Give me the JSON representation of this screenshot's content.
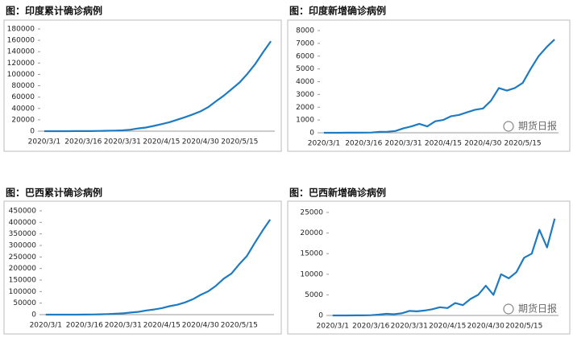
{
  "chart_data": [
    {
      "type": "line",
      "title": "图：印度累计确诊病例",
      "color": "#1f7bc1",
      "categories": [
        "2020/3/1",
        null,
        null,
        null,
        null,
        "2020/3/16",
        null,
        null,
        null,
        null,
        "2020/3/31",
        null,
        null,
        null,
        null,
        "2020/4/15",
        null,
        null,
        null,
        null,
        "2020/4/30",
        null,
        null,
        null,
        null,
        "2020/5/15",
        null,
        null,
        null,
        null
      ],
      "values": [
        3,
        28,
        34,
        50,
        82,
        114,
        195,
        396,
        657,
        987,
        1397,
        2567,
        4778,
        6412,
        9152,
        12380,
        15712,
        20080,
        24506,
        29435,
        34863,
        42533,
        52952,
        62808,
        74281,
        85940,
        101139,
        118447,
        138845,
        158333
      ],
      "ylim": [
        0,
        180000
      ],
      "yticks": [
        0,
        20000,
        40000,
        60000,
        80000,
        100000,
        120000,
        140000,
        160000,
        180000
      ]
    },
    {
      "type": "line",
      "title": "图：印度新增确诊病例",
      "color": "#1f7bc1",
      "watermark": "期货日报",
      "categories": [
        "2020/3/1",
        null,
        null,
        null,
        null,
        "2020/3/16",
        null,
        null,
        null,
        null,
        "2020/3/31",
        null,
        null,
        null,
        null,
        "2020/4/15",
        null,
        null,
        null,
        null,
        "2020/4/30",
        null,
        null,
        null,
        null,
        "2020/5/15",
        null,
        null,
        null,
        null
      ],
      "values": [
        0,
        0,
        2,
        6,
        8,
        10,
        20,
        70,
        80,
        140,
        350,
        500,
        700,
        500,
        900,
        1000,
        1300,
        1400,
        1600,
        1800,
        1900,
        2500,
        3500,
        3300,
        3500,
        3900,
        5000,
        6000,
        6700,
        7300
      ],
      "ylim": [
        0,
        8000
      ],
      "yticks": [
        0,
        1000,
        2000,
        3000,
        4000,
        5000,
        6000,
        7000,
        8000
      ]
    },
    {
      "type": "line",
      "title": "图：巴西累计确诊病例",
      "color": "#1f7bc1",
      "categories": [
        "2020/3/1",
        null,
        null,
        null,
        null,
        "2020/3/16",
        null,
        null,
        null,
        null,
        "2020/3/31",
        null,
        null,
        null,
        null,
        "2020/4/15",
        null,
        null,
        null,
        null,
        "2020/4/30",
        null,
        null,
        null,
        null,
        "2020/5/15",
        null,
        null,
        null,
        null
      ],
      "values": [
        2,
        2,
        19,
        34,
        98,
        234,
        621,
        1546,
        2433,
        3904,
        5717,
        9056,
        12056,
        18092,
        22169,
        28320,
        36599,
        43079,
        52995,
        66501,
        85380,
        101147,
        125218,
        155939,
        178214,
        218223,
        254220,
        310087,
        363211,
        411821
      ],
      "ylim": [
        0,
        450000
      ],
      "yticks": [
        0,
        50000,
        100000,
        150000,
        200000,
        250000,
        300000,
        350000,
        400000,
        450000
      ]
    },
    {
      "type": "line",
      "title": "图：巴西新增确诊病例",
      "color": "#1f7bc1",
      "watermark": "期货日报",
      "categories": [
        "2020/3/1",
        null,
        null,
        null,
        null,
        "2020/3/16",
        null,
        null,
        null,
        null,
        "2020/3/31",
        null,
        null,
        null,
        null,
        "2020/4/15",
        null,
        null,
        null,
        null,
        "2020/4/30",
        null,
        null,
        null,
        null,
        "2020/5/15",
        null,
        null,
        null,
        null
      ],
      "values": [
        0,
        0,
        5,
        10,
        20,
        50,
        200,
        400,
        300,
        500,
        1100,
        1000,
        1200,
        1500,
        2000,
        1800,
        3000,
        2500,
        4000,
        5000,
        7200,
        5000,
        10000,
        9000,
        10500,
        14000,
        15000,
        20800,
        16500,
        23500
      ],
      "ylim": [
        0,
        25000
      ],
      "yticks": [
        0,
        5000,
        10000,
        15000,
        20000,
        25000
      ]
    }
  ]
}
